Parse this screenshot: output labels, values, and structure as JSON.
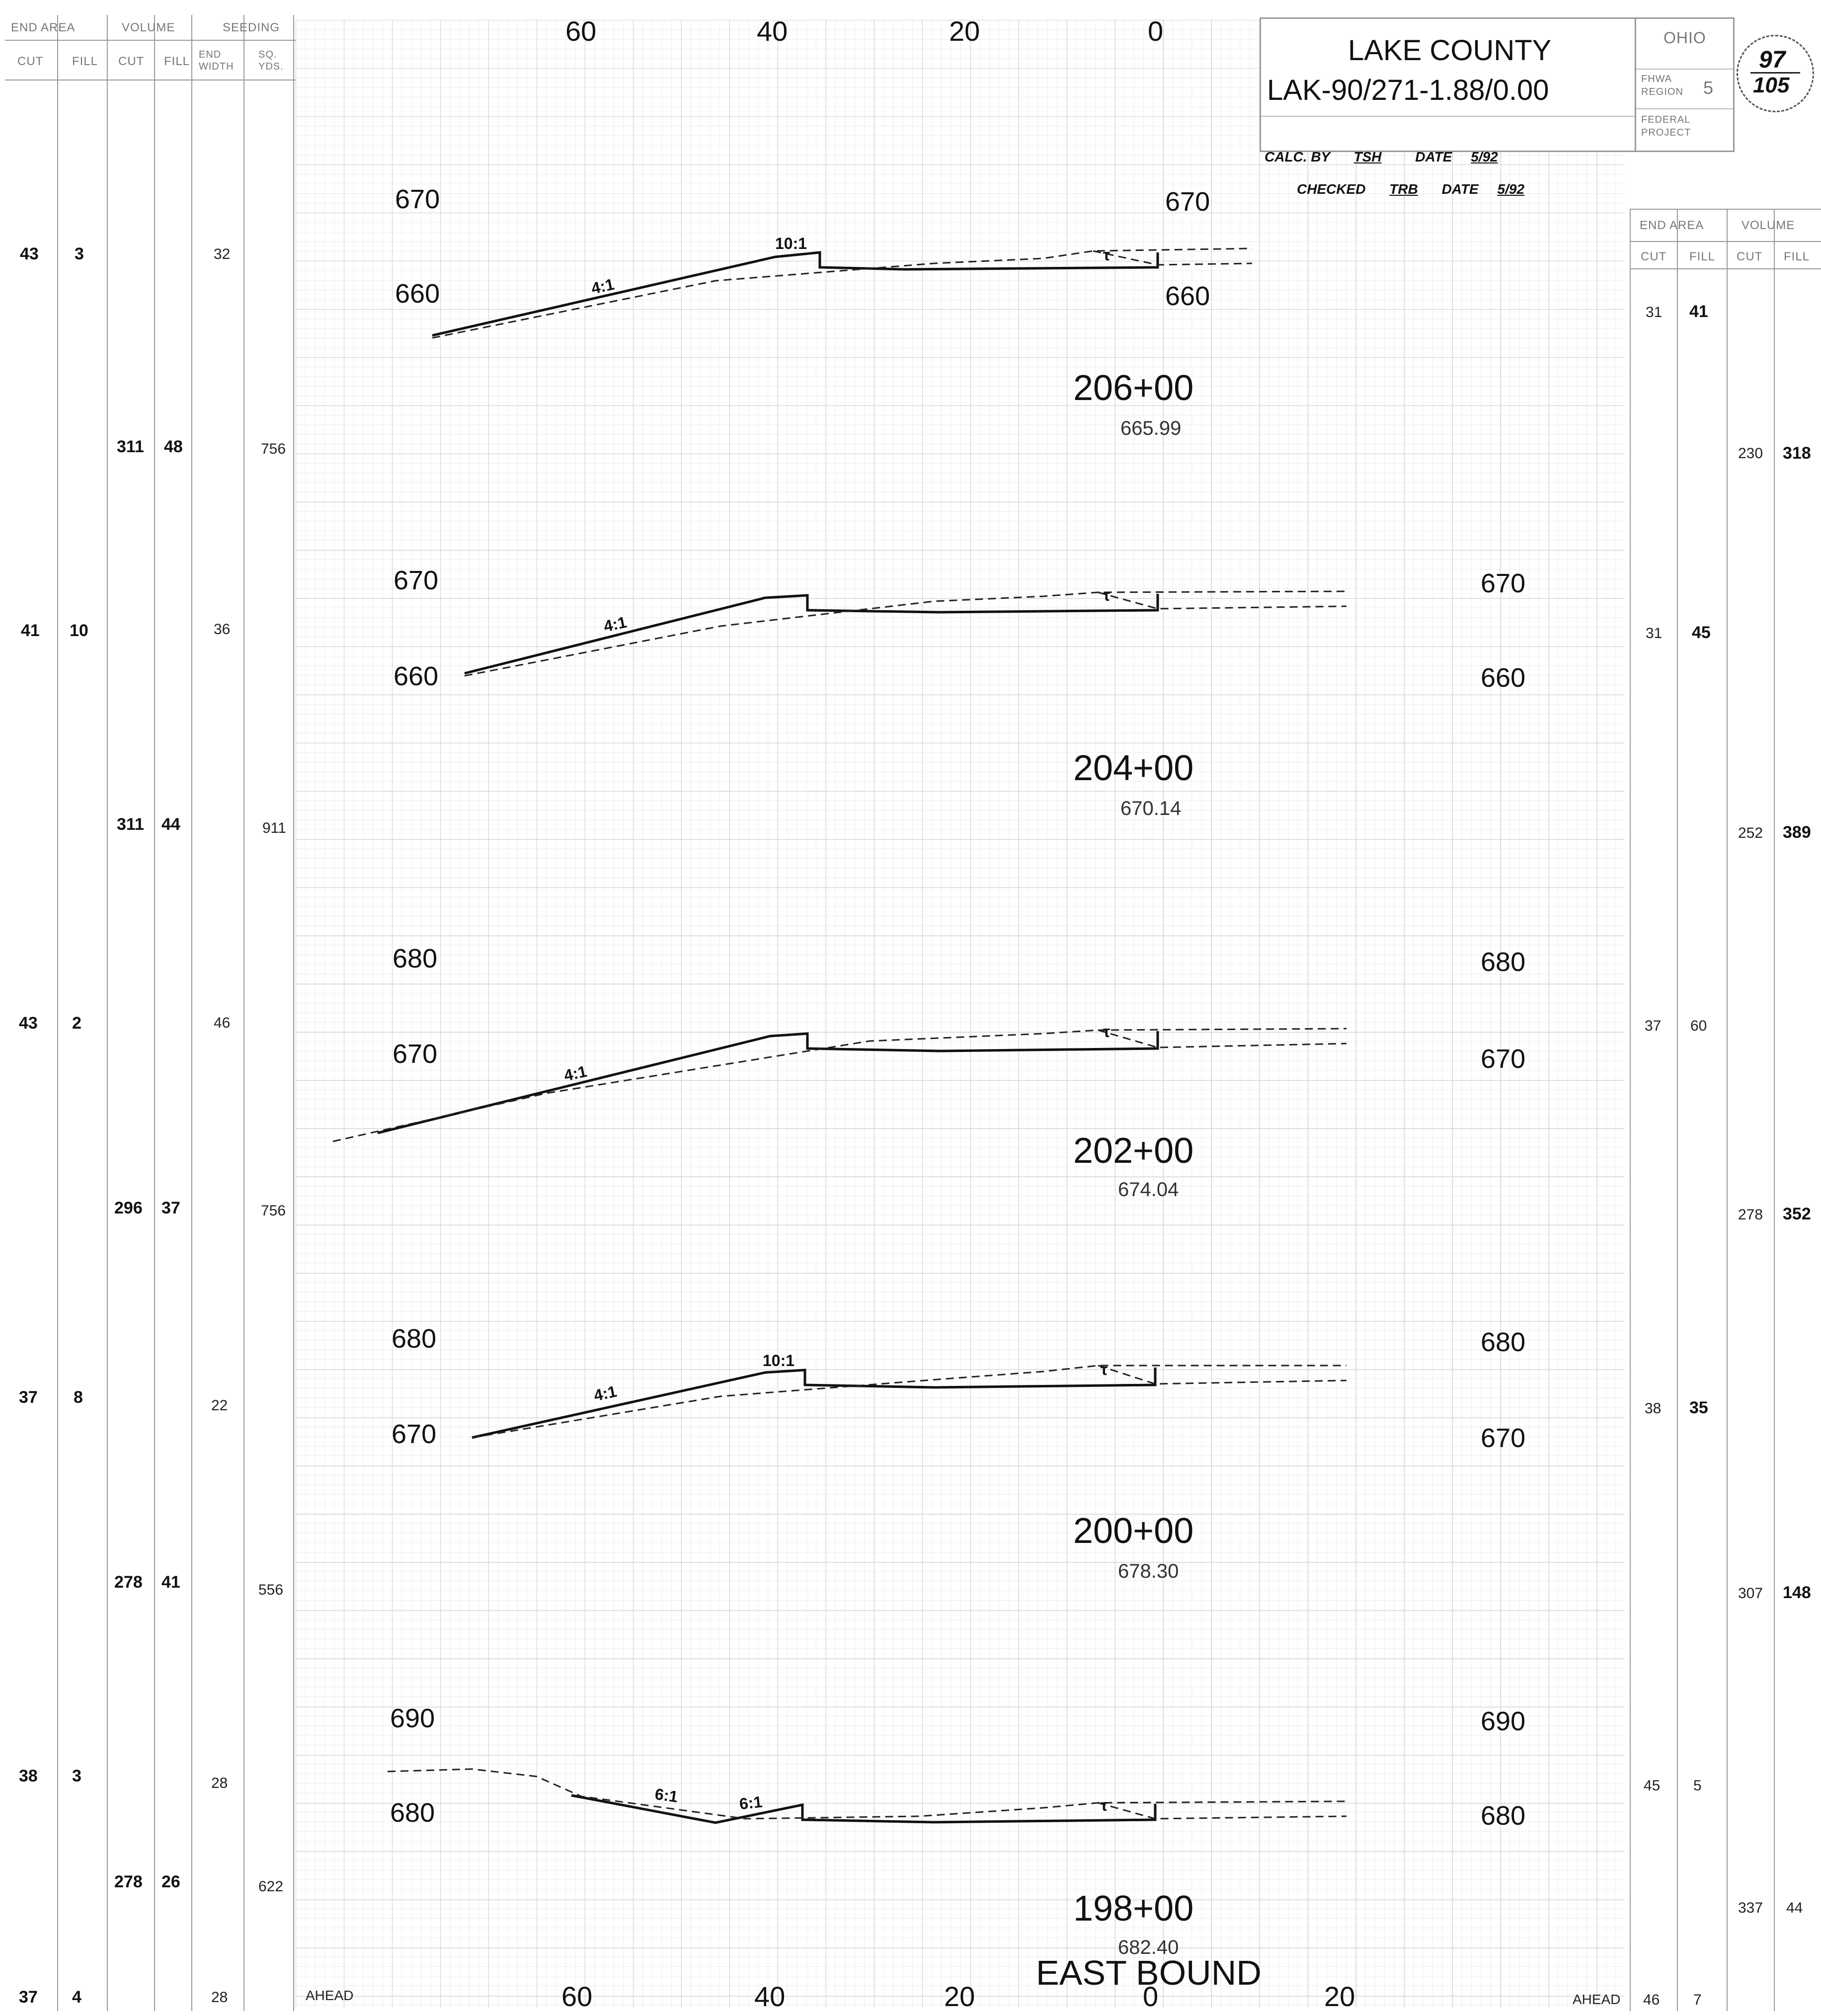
{
  "left_table": {
    "headers": {
      "end_area": "END AREA",
      "volume": "VOLUME",
      "seeding": "SEEDING",
      "cut": "CUT",
      "fill": "FILL",
      "vol_cut": "CUT",
      "vol_fill": "FILL",
      "end_width": "END WIDTH",
      "sq_yds": "SQ. YDS."
    },
    "end_area_rows": [
      {
        "cut": "43",
        "fill": "3",
        "seeding": "32"
      },
      {
        "cut": "41",
        "fill": "10",
        "seeding": "36"
      },
      {
        "cut": "43",
        "fill": "2",
        "seeding": "46"
      },
      {
        "cut": "37",
        "fill": "8",
        "seeding": "22"
      },
      {
        "cut": "38",
        "fill": "3",
        "seeding": "28"
      },
      {
        "cut": "37",
        "fill": "4",
        "seeding": "28"
      }
    ],
    "volume_rows": [
      {
        "cut": "311",
        "fill": "48",
        "sq_yds": "756"
      },
      {
        "cut": "311",
        "fill": "44",
        "sq_yds": "911"
      },
      {
        "cut": "296",
        "fill": "37",
        "sq_yds": "756"
      },
      {
        "cut": "278",
        "fill": "41",
        "sq_yds": "556"
      },
      {
        "cut": "278",
        "fill": "26",
        "sq_yds": "622"
      }
    ],
    "ahead": "AHEAD"
  },
  "right_table": {
    "headers": {
      "end_area": "END AREA",
      "volume": "VOLUME",
      "cut": "CUT",
      "fill": "FILL",
      "vol_cut": "CUT",
      "vol_fill": "FILL"
    },
    "end_area_rows": [
      {
        "cut": "31",
        "fill": "41"
      },
      {
        "cut": "31",
        "fill": "45"
      },
      {
        "cut": "37",
        "fill": "60"
      },
      {
        "cut": "38",
        "fill": "35"
      },
      {
        "cut": "45",
        "fill": "5"
      },
      {
        "cut": "46",
        "fill": "7"
      }
    ],
    "volume_rows": [
      {
        "cut": "230",
        "fill": "318"
      },
      {
        "cut": "252",
        "fill": "389"
      },
      {
        "cut": "278",
        "fill": "352"
      },
      {
        "cut": "307",
        "fill": "148"
      },
      {
        "cut": "337",
        "fill": "44"
      }
    ],
    "ahead": "AHEAD"
  },
  "axis": {
    "top": [
      "60",
      "40",
      "20",
      "0"
    ],
    "bottom": [
      "60",
      "40",
      "20",
      "0",
      "20"
    ]
  },
  "title_block": {
    "county": "LAKE COUNTY",
    "project": "LAK-90/271-1.88/0.00",
    "calc_by_label": "CALC. BY",
    "calc_by": "TSH",
    "date_label": "DATE",
    "calc_date": "5/92",
    "checked_label": "CHECKED",
    "checked_by": "TRB",
    "checked_date": "5/92",
    "state": "OHIO",
    "fhwa_region_label": "FHWA REGION",
    "fhwa_region": "5",
    "federal_project_label": "FEDERAL PROJECT",
    "sheet": "97",
    "sheet_total": "105"
  },
  "sections": [
    {
      "station": "206+00",
      "elevation": "665.99",
      "upper_elev": "670",
      "lower_elev": "660",
      "right_upper": "670",
      "right_lower": "660",
      "slopes": [
        "10:1",
        "4:1"
      ],
      "curb_mark": "τ"
    },
    {
      "station": "204+00",
      "elevation": "670.14",
      "upper_elev": "670",
      "lower_elev": "660",
      "right_upper": "670",
      "right_lower": "660",
      "slopes": [
        "4:1"
      ],
      "curb_mark": "τ"
    },
    {
      "station": "202+00",
      "elevation": "674.04",
      "upper_elev": "680",
      "lower_elev": "670",
      "right_upper": "680",
      "right_lower": "670",
      "slopes": [
        "4:1"
      ],
      "curb_mark": "τ"
    },
    {
      "station": "200+00",
      "elevation": "678.30",
      "upper_elev": "680",
      "lower_elev": "670",
      "right_upper": "680",
      "right_lower": "670",
      "slopes": [
        "10:1",
        "4:1"
      ],
      "curb_mark": "τ"
    },
    {
      "station": "198+00",
      "elevation": "682.40",
      "upper_elev": "690",
      "lower_elev": "680",
      "right_upper": "690",
      "right_lower": "680",
      "slopes": [
        "6:1",
        "6:1"
      ],
      "curb_mark": "τ"
    }
  ],
  "direction": "EAST BOUND"
}
